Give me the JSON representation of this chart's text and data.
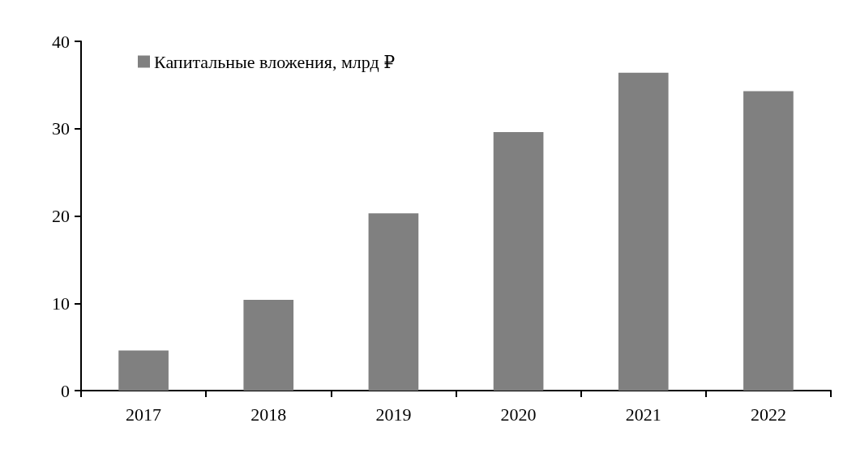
{
  "chart_data": {
    "type": "bar",
    "categories": [
      "2017",
      "2018",
      "2019",
      "2020",
      "2021",
      "2022"
    ],
    "series": [
      {
        "name": "Капитальные вложения, млрд ₽",
        "color": "#808080",
        "values": [
          4.6,
          10.4,
          20.3,
          29.6,
          36.4,
          34.3
        ]
      }
    ],
    "ylim": [
      0,
      40
    ],
    "yticks": [
      0,
      10,
      20,
      30,
      40
    ],
    "grid": false,
    "legend": "top left"
  }
}
